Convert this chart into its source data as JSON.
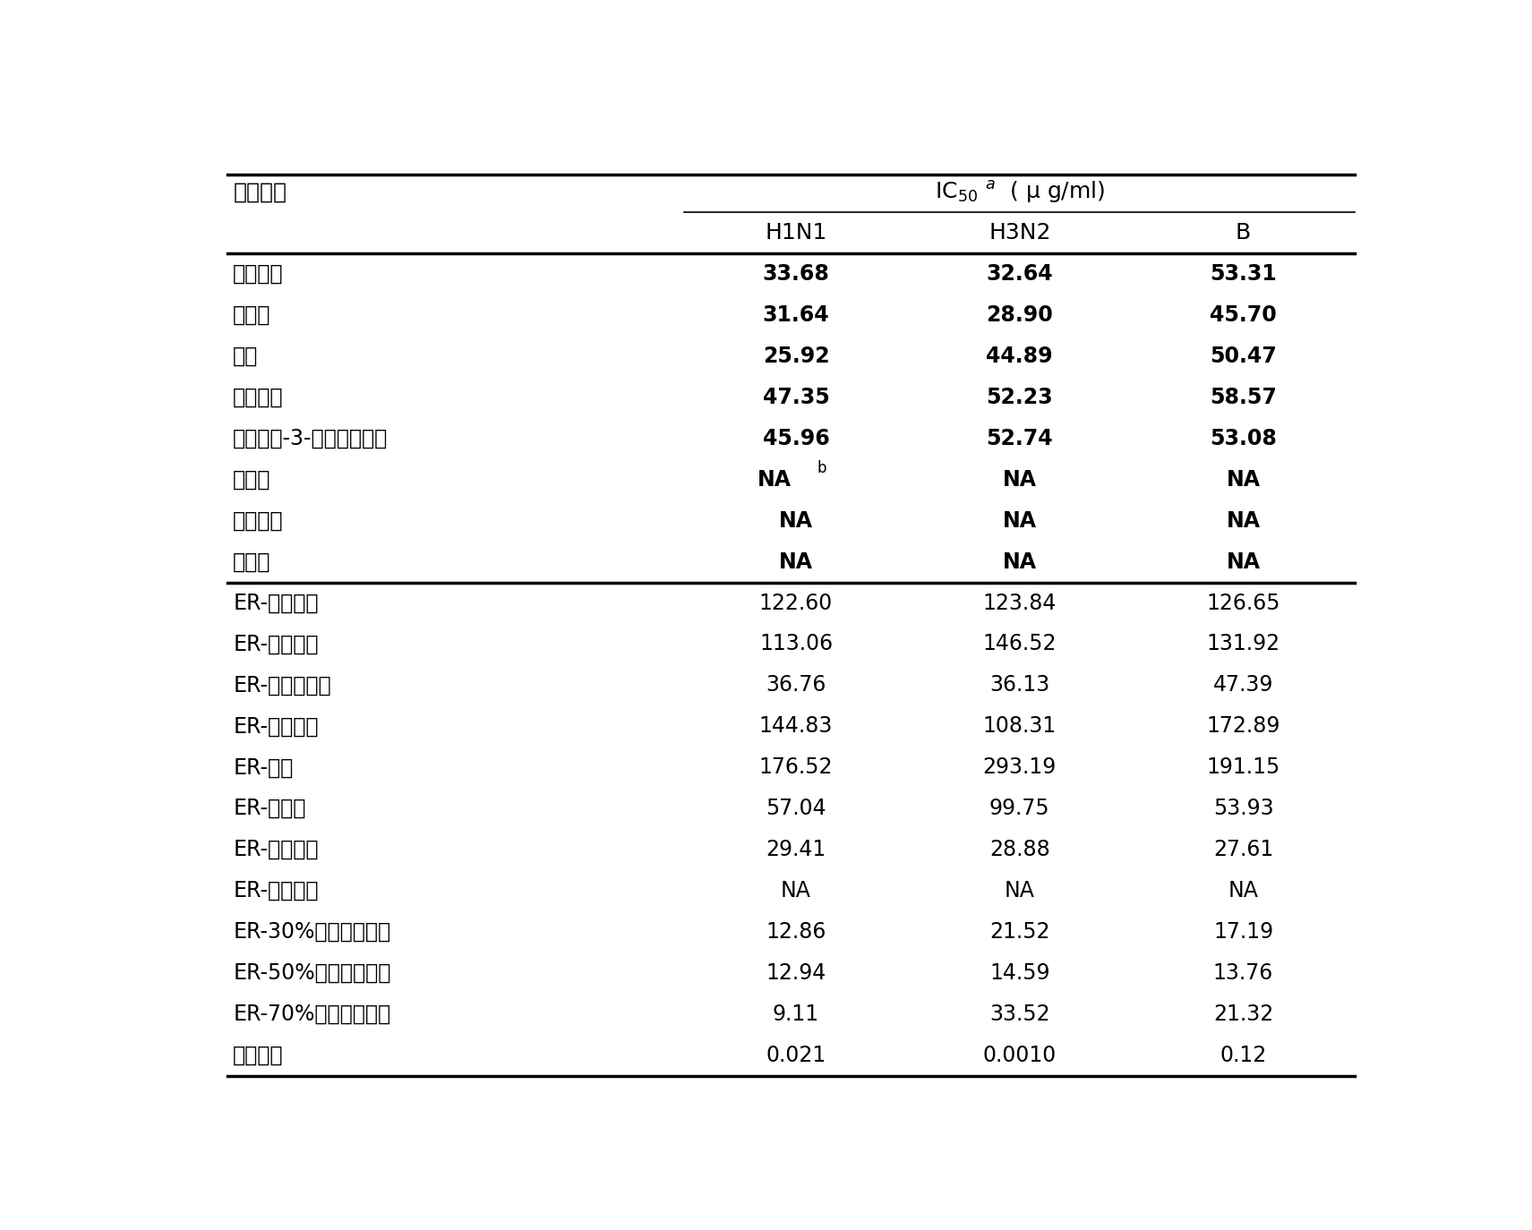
{
  "col_header_row1_left": "检测物质",
  "col_header_row1_right": "IC$_{50}$ $^{a}$  ( μ g/ml)",
  "col_header_row2": [
    "H1N1",
    "H3N2",
    "B"
  ],
  "rows_section1": [
    [
      "木犊草素",
      "33.68",
      "32.64",
      "53.31"
    ],
    [
      "芛菜素",
      "31.64",
      "28.90",
      "45.70"
    ],
    [
      "芛苷",
      "25.92",
      "44.89",
      "50.47"
    ],
    [
      "木犊草苷",
      "47.35",
      "52.23",
      "58.57"
    ],
    [
      "木犊草素-3-葡糖醉酸甲酩",
      "45.96",
      "52.74",
      "53.08"
    ],
    [
      "桦木酸",
      "NA_b",
      "NA",
      "NA"
    ],
    [
      "齐墓果酸",
      "NA",
      "NA",
      "NA"
    ],
    [
      "熊果酸",
      "NA",
      "NA",
      "NA"
    ]
  ],
  "rows_section2": [
    [
      "ER-乙醇总提",
      "122.60",
      "123.84",
      "126.65"
    ],
    [
      "ER-石油醚层",
      "113.06",
      "146.52",
      "131.92"
    ],
    [
      "ER-醋酸乙酩层",
      "36.76",
      "36.13",
      "47.39"
    ],
    [
      "ER-正丁醇层",
      "144.83",
      "108.31",
      "172.89"
    ],
    [
      "ER-水层",
      "176.52",
      "293.19",
      "191.15"
    ],
    [
      "ER-水总提",
      "57.04",
      "99.75",
      "53.93"
    ],
    [
      "ER-水提醇沉",
      "29.41",
      "28.88",
      "27.61"
    ],
    [
      "ER-水洗组份",
      "NA",
      "NA",
      "NA"
    ],
    [
      "ER-30%乙醇洗脱组份",
      "12.86",
      "21.52",
      "17.19"
    ],
    [
      "ER-50%乙醇洗脱组份",
      "12.94",
      "14.59",
      "13.76"
    ],
    [
      "ER-70%乙醇洗脱组份",
      "9.11",
      "33.52",
      "21.32"
    ],
    [
      "奥塞米韦",
      "0.021",
      "0.0010",
      "0.12"
    ]
  ],
  "background_color": "#ffffff",
  "text_color": "#000000",
  "lw_thick": 2.5,
  "lw_thin": 1.2
}
